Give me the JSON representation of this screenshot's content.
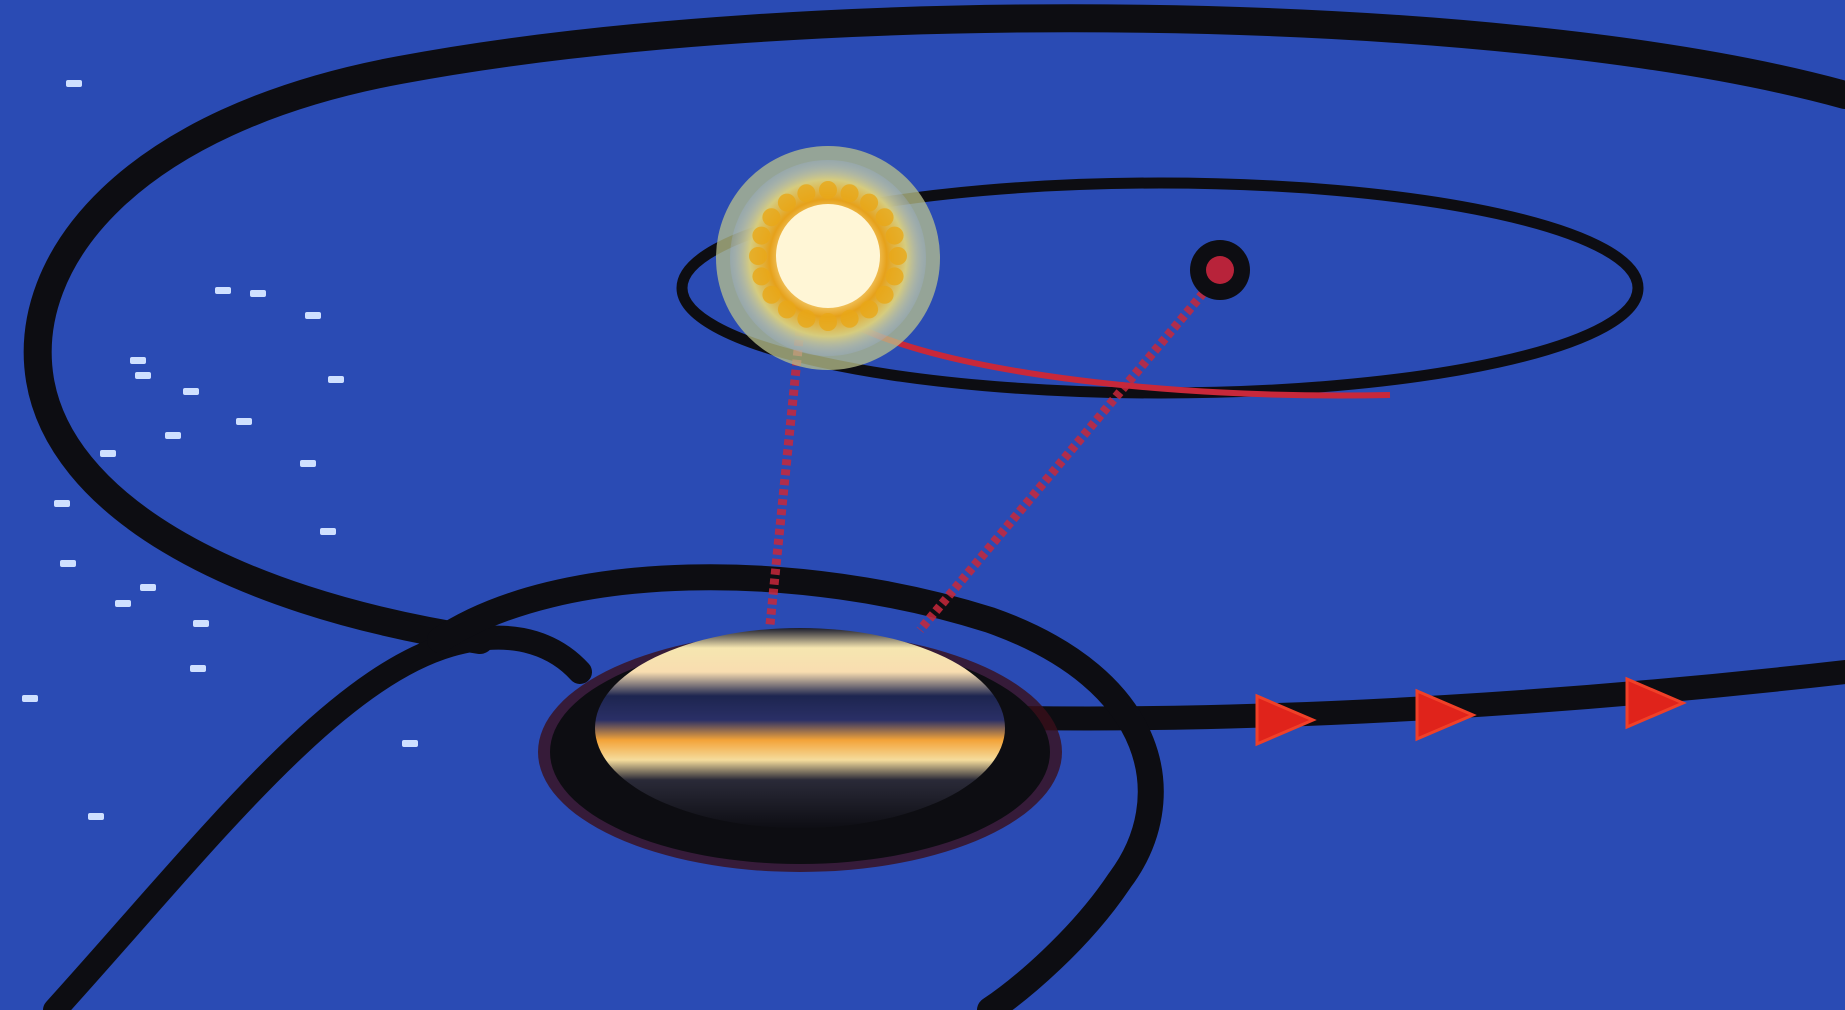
{
  "scene": {
    "background_color": "#2a4bb4",
    "orbit_color": "#0d0d12",
    "sightline_color": "#c8283a",
    "arrow_color": "#e0231b",
    "star_color": "#cfe0ff",
    "sun": {
      "halo_color": "#d9d48a",
      "ring_color": "#e8a818",
      "core_color": "#fff8dc",
      "icon": "sun-icon"
    },
    "small_planet": {
      "color": "#b8233a",
      "icon": "small-planet-icon"
    },
    "gas_giant": {
      "band_colors": [
        "#f6e3a8",
        "#1b2248",
        "#f3a63a",
        "#f5d89a",
        "#1a1a22"
      ],
      "icon": "striped-planet-icon"
    },
    "trajectory_arrows": {
      "count": 3,
      "icon": "chevron-right-icon"
    },
    "stars": {
      "count": 22,
      "icon": "star-dot-icon"
    }
  }
}
